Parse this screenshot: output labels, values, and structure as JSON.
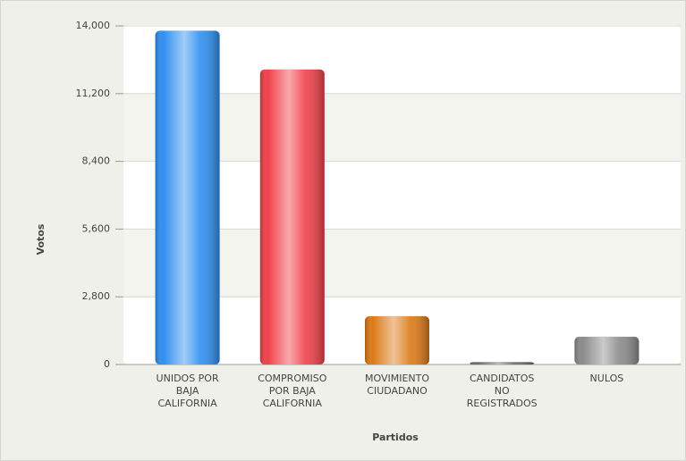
{
  "chart_data": {
    "type": "bar",
    "x_label": "Partidos",
    "y_label": "Votos",
    "categories": [
      "UNIDOS POR BAJA CALIFORNIA",
      "COMPROMISO POR BAJA CALIFORNIA",
      "MOVIMIENTO CIUDADANO",
      "CANDIDATOS NO REGISTRADOS",
      "NULOS"
    ],
    "values": [
      13800,
      12200,
      2000,
      100,
      1150
    ],
    "colors": [
      "#2f8ff0",
      "#f0404a",
      "#dc7a18",
      "#6a6a6a",
      "#8a8a8a"
    ],
    "ylim": [
      0,
      14000
    ],
    "yticks": [
      0,
      {
        "value": 2800,
        "label": "2,800"
      },
      {
        "value": 5600,
        "label": "5,600"
      },
      {
        "value": 8400,
        "label": "8,400"
      },
      {
        "value": 11200,
        "label": "11,200"
      },
      {
        "value": 14000,
        "label": "14,000"
      }
    ],
    "grid": true
  }
}
